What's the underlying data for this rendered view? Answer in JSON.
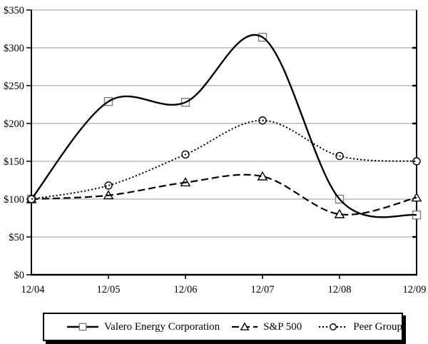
{
  "chart_data": {
    "type": "line",
    "x_categories": [
      "12/04",
      "12/05",
      "12/06",
      "12/07",
      "12/08",
      "12/09"
    ],
    "y_axis": {
      "min": 0,
      "max": 350,
      "step": 50,
      "tick_labels": [
        "$0",
        "$50",
        "$100",
        "$150",
        "$200",
        "$250",
        "$300",
        "$350"
      ]
    },
    "grid": true,
    "smoothed": true,
    "legend_position": "bottom-box",
    "colors": {
      "line": "#000000",
      "grid": "#9b9b9b",
      "axis": "#000000",
      "marker_fill": "#ffffff",
      "square_stroke": "#7f7f7f",
      "background": "#ffffff"
    },
    "series": [
      {
        "name": "Valero Energy Corporation",
        "marker": "square",
        "line_style": "solid",
        "values": [
          100,
          229,
          228,
          314,
          100,
          79
        ]
      },
      {
        "name": "S&P 500",
        "marker": "triangle",
        "line_style": "dashed",
        "values": [
          100,
          105,
          122,
          130,
          80,
          102
        ]
      },
      {
        "name": "Peer Group",
        "marker": "circle",
        "line_style": "dotted",
        "values": [
          100,
          118,
          159,
          204,
          157,
          150
        ]
      }
    ]
  }
}
